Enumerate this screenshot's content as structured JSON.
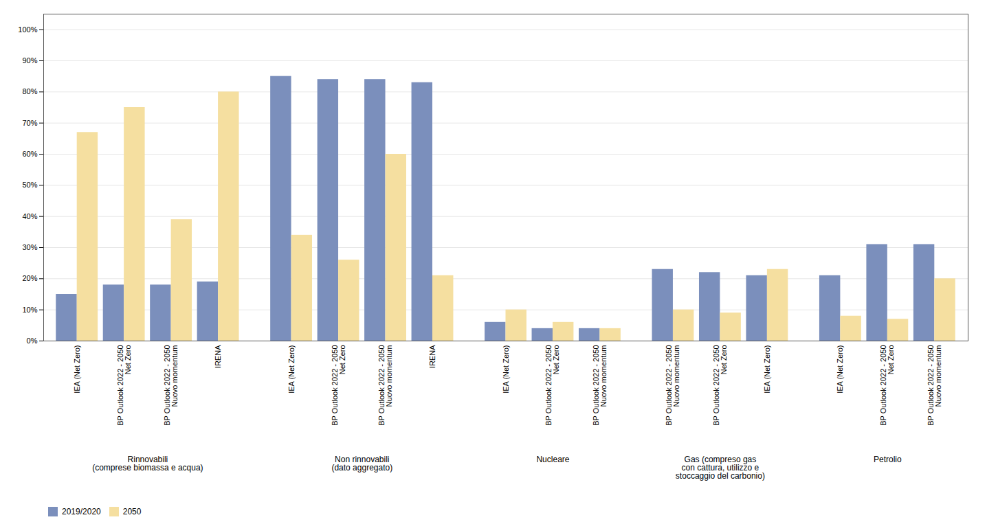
{
  "chart_data": {
    "type": "bar",
    "groups": [
      {
        "label": "Rinnovabili\n(comprese biomassa e acqua)",
        "categories": [
          "IEA (Net Zero)",
          "BP Outlook 2022 - 2050\nNet Zero",
          "BP Outlook 2022 - 2050\nNuovo momentum",
          "IRENA"
        ]
      },
      {
        "label": "Non rinnovabili\n(dato aggregato)",
        "categories": [
          "IEA (Net Zero)",
          "BP Outlook 2022 - 2050\nNet Zero",
          "BP Outlook 2022 - 2050\nNuovo momentum",
          "IRENA"
        ]
      },
      {
        "label": "Nucleare",
        "categories": [
          "IEA (Net Zero)",
          "BP Outlook 2022 - 2050\nNet Zero",
          "BP Outlook 2022 - 2050\nNuovo momentum"
        ]
      },
      {
        "label": "Gas (compreso gas\ncon cattura, utilizzo e\nstoccaggio del carbonio)",
        "categories": [
          "BP Outlook 2022 - 2050\nNuovo momentum",
          "BP Outlook 2022 - 2050\nNet Zero",
          "IEA (Net Zero)"
        ]
      },
      {
        "label": "Petrolio",
        "categories": [
          "IEA (Net Zero)",
          "BP Outlook 2022 - 2050\nNet Zero",
          "BP Outlook 2022 - 2050\nNuovo momentum"
        ]
      }
    ],
    "series": [
      {
        "name": "2019/2020",
        "color": "#7b8fbc",
        "values": [
          15,
          18,
          18,
          19,
          85,
          84,
          84,
          83,
          6,
          4,
          4,
          23,
          22,
          21,
          21,
          31,
          31
        ]
      },
      {
        "name": "2050",
        "color": "#f5dfa0",
        "values": [
          67,
          75,
          39,
          80,
          34,
          26,
          60,
          21,
          10,
          6,
          4,
          10,
          9,
          23,
          8,
          7,
          20
        ]
      }
    ],
    "ylim": [
      0,
      105
    ],
    "yticks": [
      {
        "value": 0,
        "label": "0%"
      },
      {
        "value": 10,
        "label": "10%"
      },
      {
        "value": 20,
        "label": "20%"
      },
      {
        "value": 30,
        "label": "30%"
      },
      {
        "value": 40,
        "label": "40%"
      },
      {
        "value": 50,
        "label": "50%"
      },
      {
        "value": 60,
        "label": "60%"
      },
      {
        "value": 70,
        "label": "70%"
      },
      {
        "value": 80,
        "label": "80%"
      },
      {
        "value": 90,
        "label": "90%"
      },
      {
        "value": 100,
        "label": "100%"
      }
    ],
    "grid": true,
    "legend": "lower left"
  }
}
